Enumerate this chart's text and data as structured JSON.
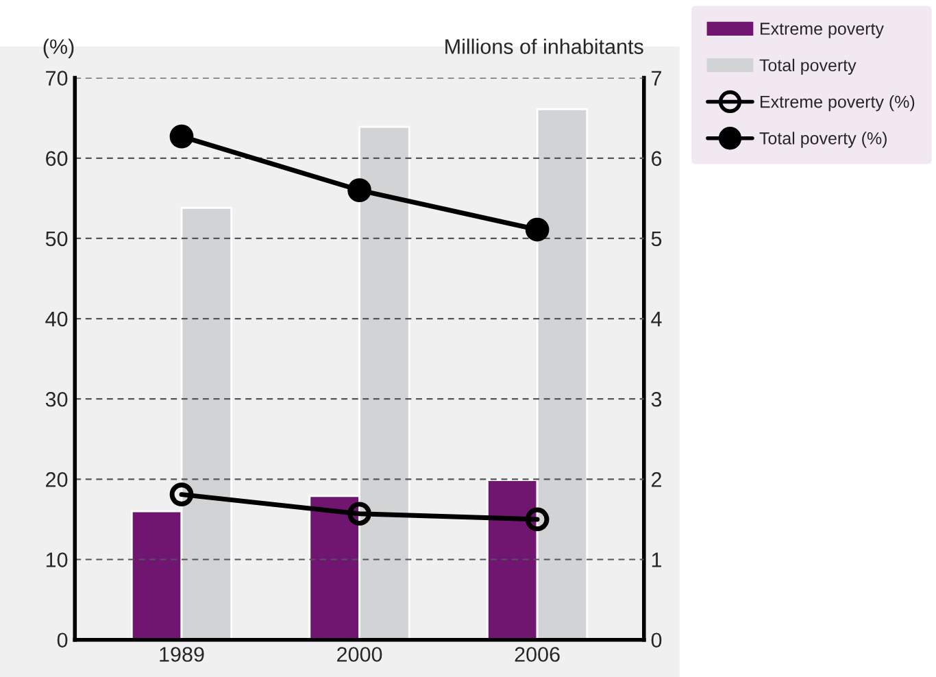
{
  "chart_data": {
    "type": "bar",
    "categories": [
      "1989",
      "2000",
      "2006"
    ],
    "ylabel": "(%)",
    "y2label": "Millions of inhabitants",
    "ylim": [
      0,
      70
    ],
    "yticks": [
      0,
      10,
      20,
      30,
      40,
      50,
      60,
      70
    ],
    "y2lim": [
      0,
      7
    ],
    "y2ticks": [
      0,
      1,
      2,
      3,
      4,
      5,
      6,
      7
    ],
    "grid": "y",
    "legend": "top right",
    "series": [
      {
        "name": "Extreme poverty",
        "axis": "y2",
        "color": "#701570",
        "values": [
          1.6,
          1.79,
          1.99
        ]
      },
      {
        "name": "Total poverty",
        "axis": "y2",
        "color": "#d2d3d5",
        "values": [
          5.38,
          6.39,
          6.61
        ]
      },
      {
        "name": "Extreme poverty (%)",
        "type": "line",
        "axis": "y",
        "color": "#000000",
        "marker": "circle",
        "values": [
          18.1,
          15.7,
          15.0
        ]
      },
      {
        "name": "Total poverty (%)",
        "type": "line",
        "axis": "y",
        "color": "#000000",
        "marker": "circle",
        "values": [
          62.7,
          56.0,
          51.1
        ]
      }
    ]
  }
}
